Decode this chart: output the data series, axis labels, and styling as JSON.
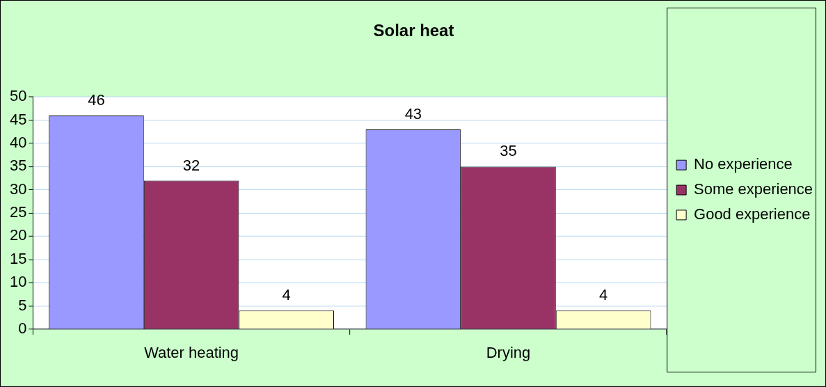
{
  "chart_data": {
    "type": "bar",
    "title": "Solar heat",
    "categories": [
      "Water heating",
      "Drying"
    ],
    "series": [
      {
        "name": "No experience",
        "color": "#9999ff",
        "values": [
          46,
          43
        ]
      },
      {
        "name": "Some experience",
        "color": "#993366",
        "values": [
          32,
          35
        ]
      },
      {
        "name": "Good experience",
        "color": "#ffffcc",
        "values": [
          4,
          4
        ]
      }
    ],
    "ylim": [
      0,
      50
    ],
    "yticks": [
      0,
      5,
      10,
      15,
      20,
      25,
      30,
      35,
      40,
      45,
      50
    ],
    "grid": "y",
    "legend": "right",
    "data_labels": true
  }
}
